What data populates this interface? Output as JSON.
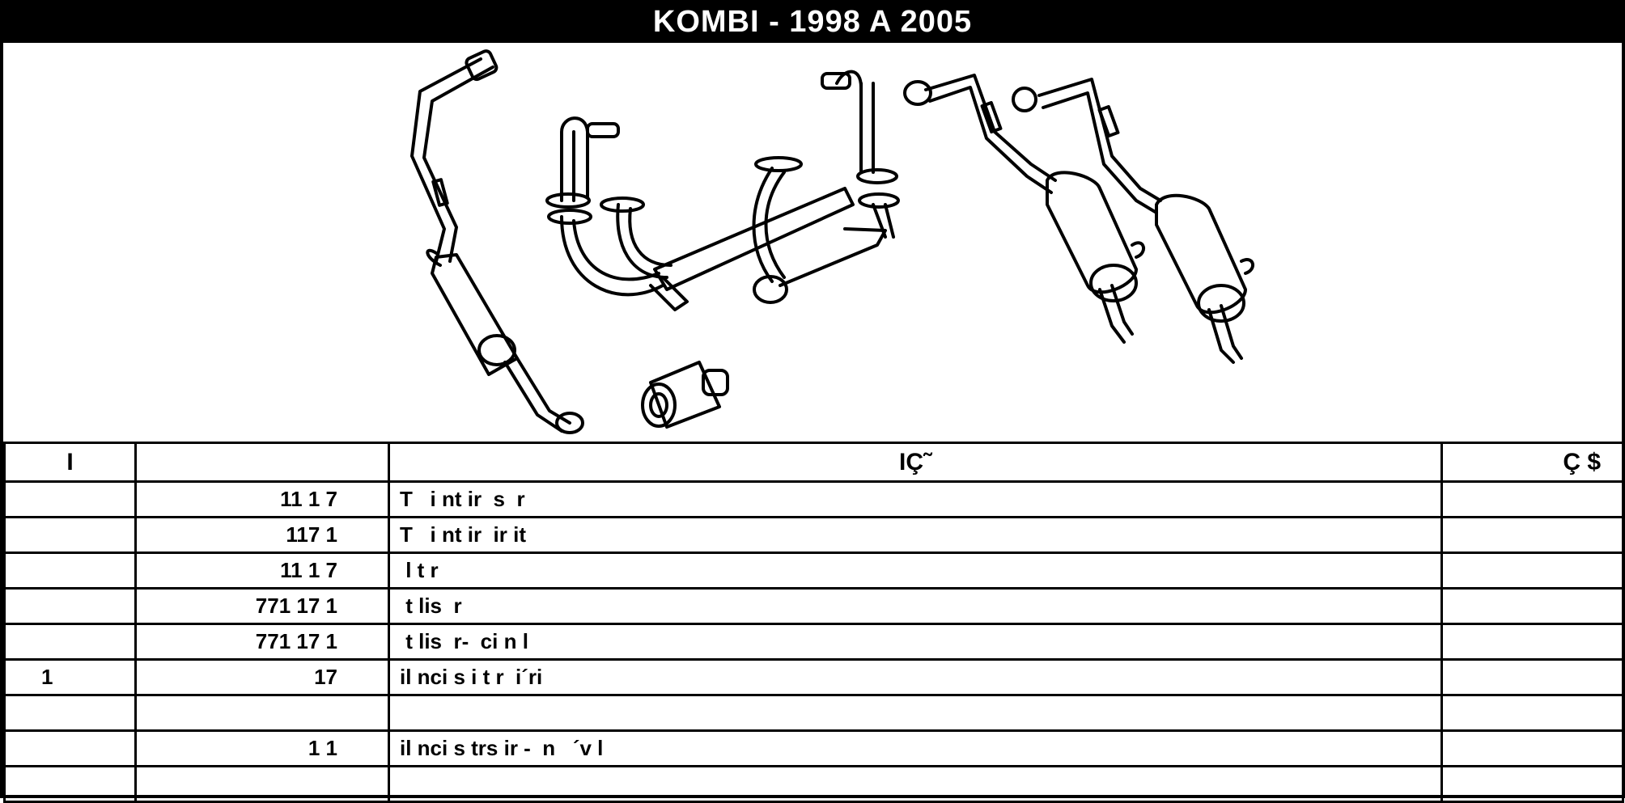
{
  "title": "KOMBI - 1998 A 2005",
  "columns": [
    "I",
    "",
    "IÇ˜",
    "Ç $"
  ],
  "rows": [
    {
      "col1": "",
      "col2": "11 1 7",
      "col3": "T   i nt ir  s  r",
      "col4": ""
    },
    {
      "col1": "",
      "col2": "117 1",
      "col3": "T   i nt ir  ir it",
      "col4": ""
    },
    {
      "col1": "",
      "col2": "11 1 7",
      "col3": " l t r",
      "col4": ""
    },
    {
      "col1": "",
      "col2": "771 17 1",
      "col3": " t lis  r",
      "col4": ""
    },
    {
      "col1": "",
      "col2": "771 17 1",
      "col3": " t lis  r-  ci n l",
      "col4": ""
    },
    {
      "col1": "1",
      "col2": "17",
      "col3": "il nci s i t r  i´ri",
      "col4": ""
    },
    {
      "col1": "",
      "col2": "",
      "col3": "",
      "col4": ""
    },
    {
      "col1": "",
      "col2": "1 1",
      "col3": "il nci s trs ir -  n   ´v l",
      "col4": ""
    },
    {
      "col1": "",
      "col2": "",
      "col3": "",
      "col4": ""
    }
  ]
}
